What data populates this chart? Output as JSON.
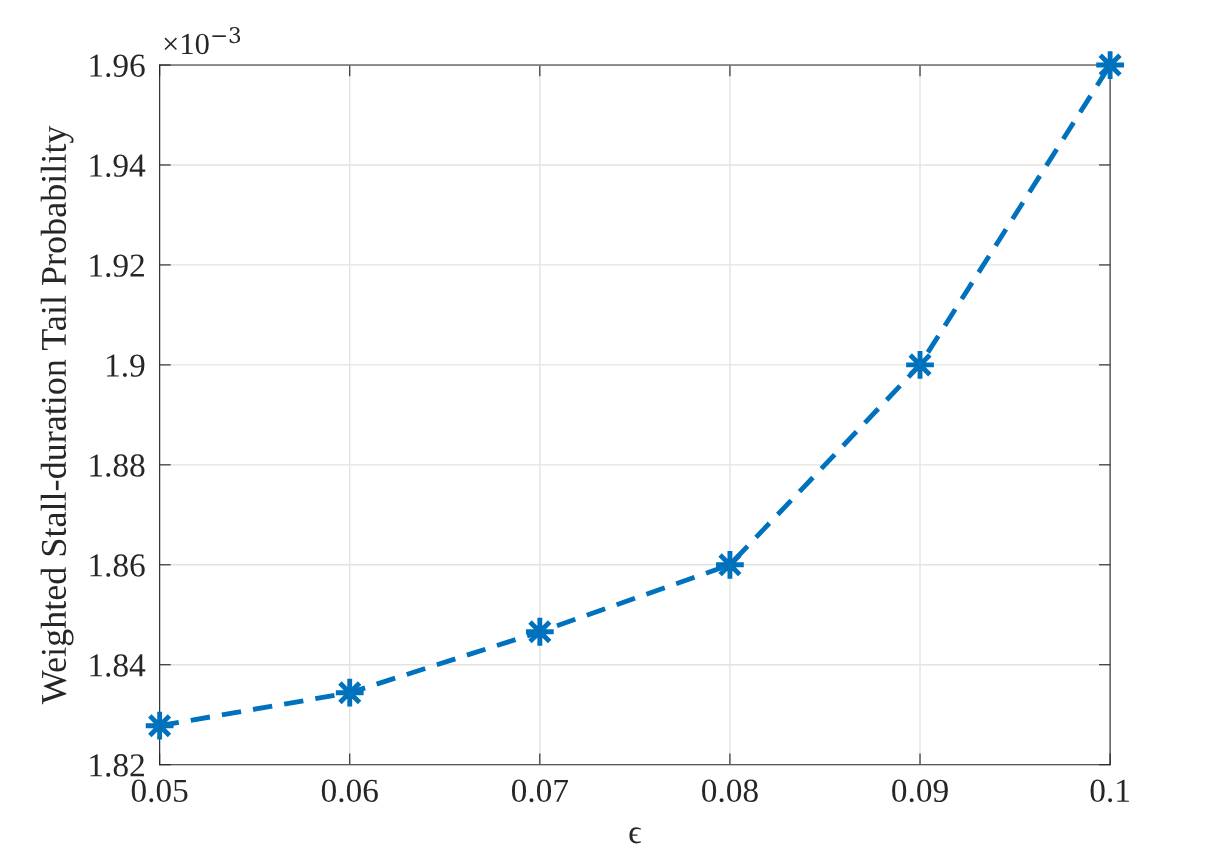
{
  "chart_data": {
    "type": "line",
    "xlabel": "ϵ",
    "ylabel": "Weighted Stall-duration Tail Probability",
    "x": [
      0.05,
      0.06,
      0.07,
      0.08,
      0.09,
      0.1
    ],
    "series": [
      {
        "color": "#0072bd",
        "values": [
          1.8278,
          1.8344,
          1.8466,
          1.86,
          1.9,
          1.96
        ]
      }
    ],
    "xlim": [
      0.05,
      0.1
    ],
    "xticks": [
      0.05,
      0.06,
      0.07,
      0.08,
      0.09,
      0.1
    ],
    "ylim": [
      1.82,
      1.96
    ],
    "yticks": [
      1.82,
      1.84,
      1.86,
      1.88,
      1.9,
      1.92,
      1.94,
      1.96
    ],
    "annotations": [
      "×10$^{−3}$"
    ],
    "grid": true,
    "marker": "star",
    "line_style": "dashed"
  }
}
